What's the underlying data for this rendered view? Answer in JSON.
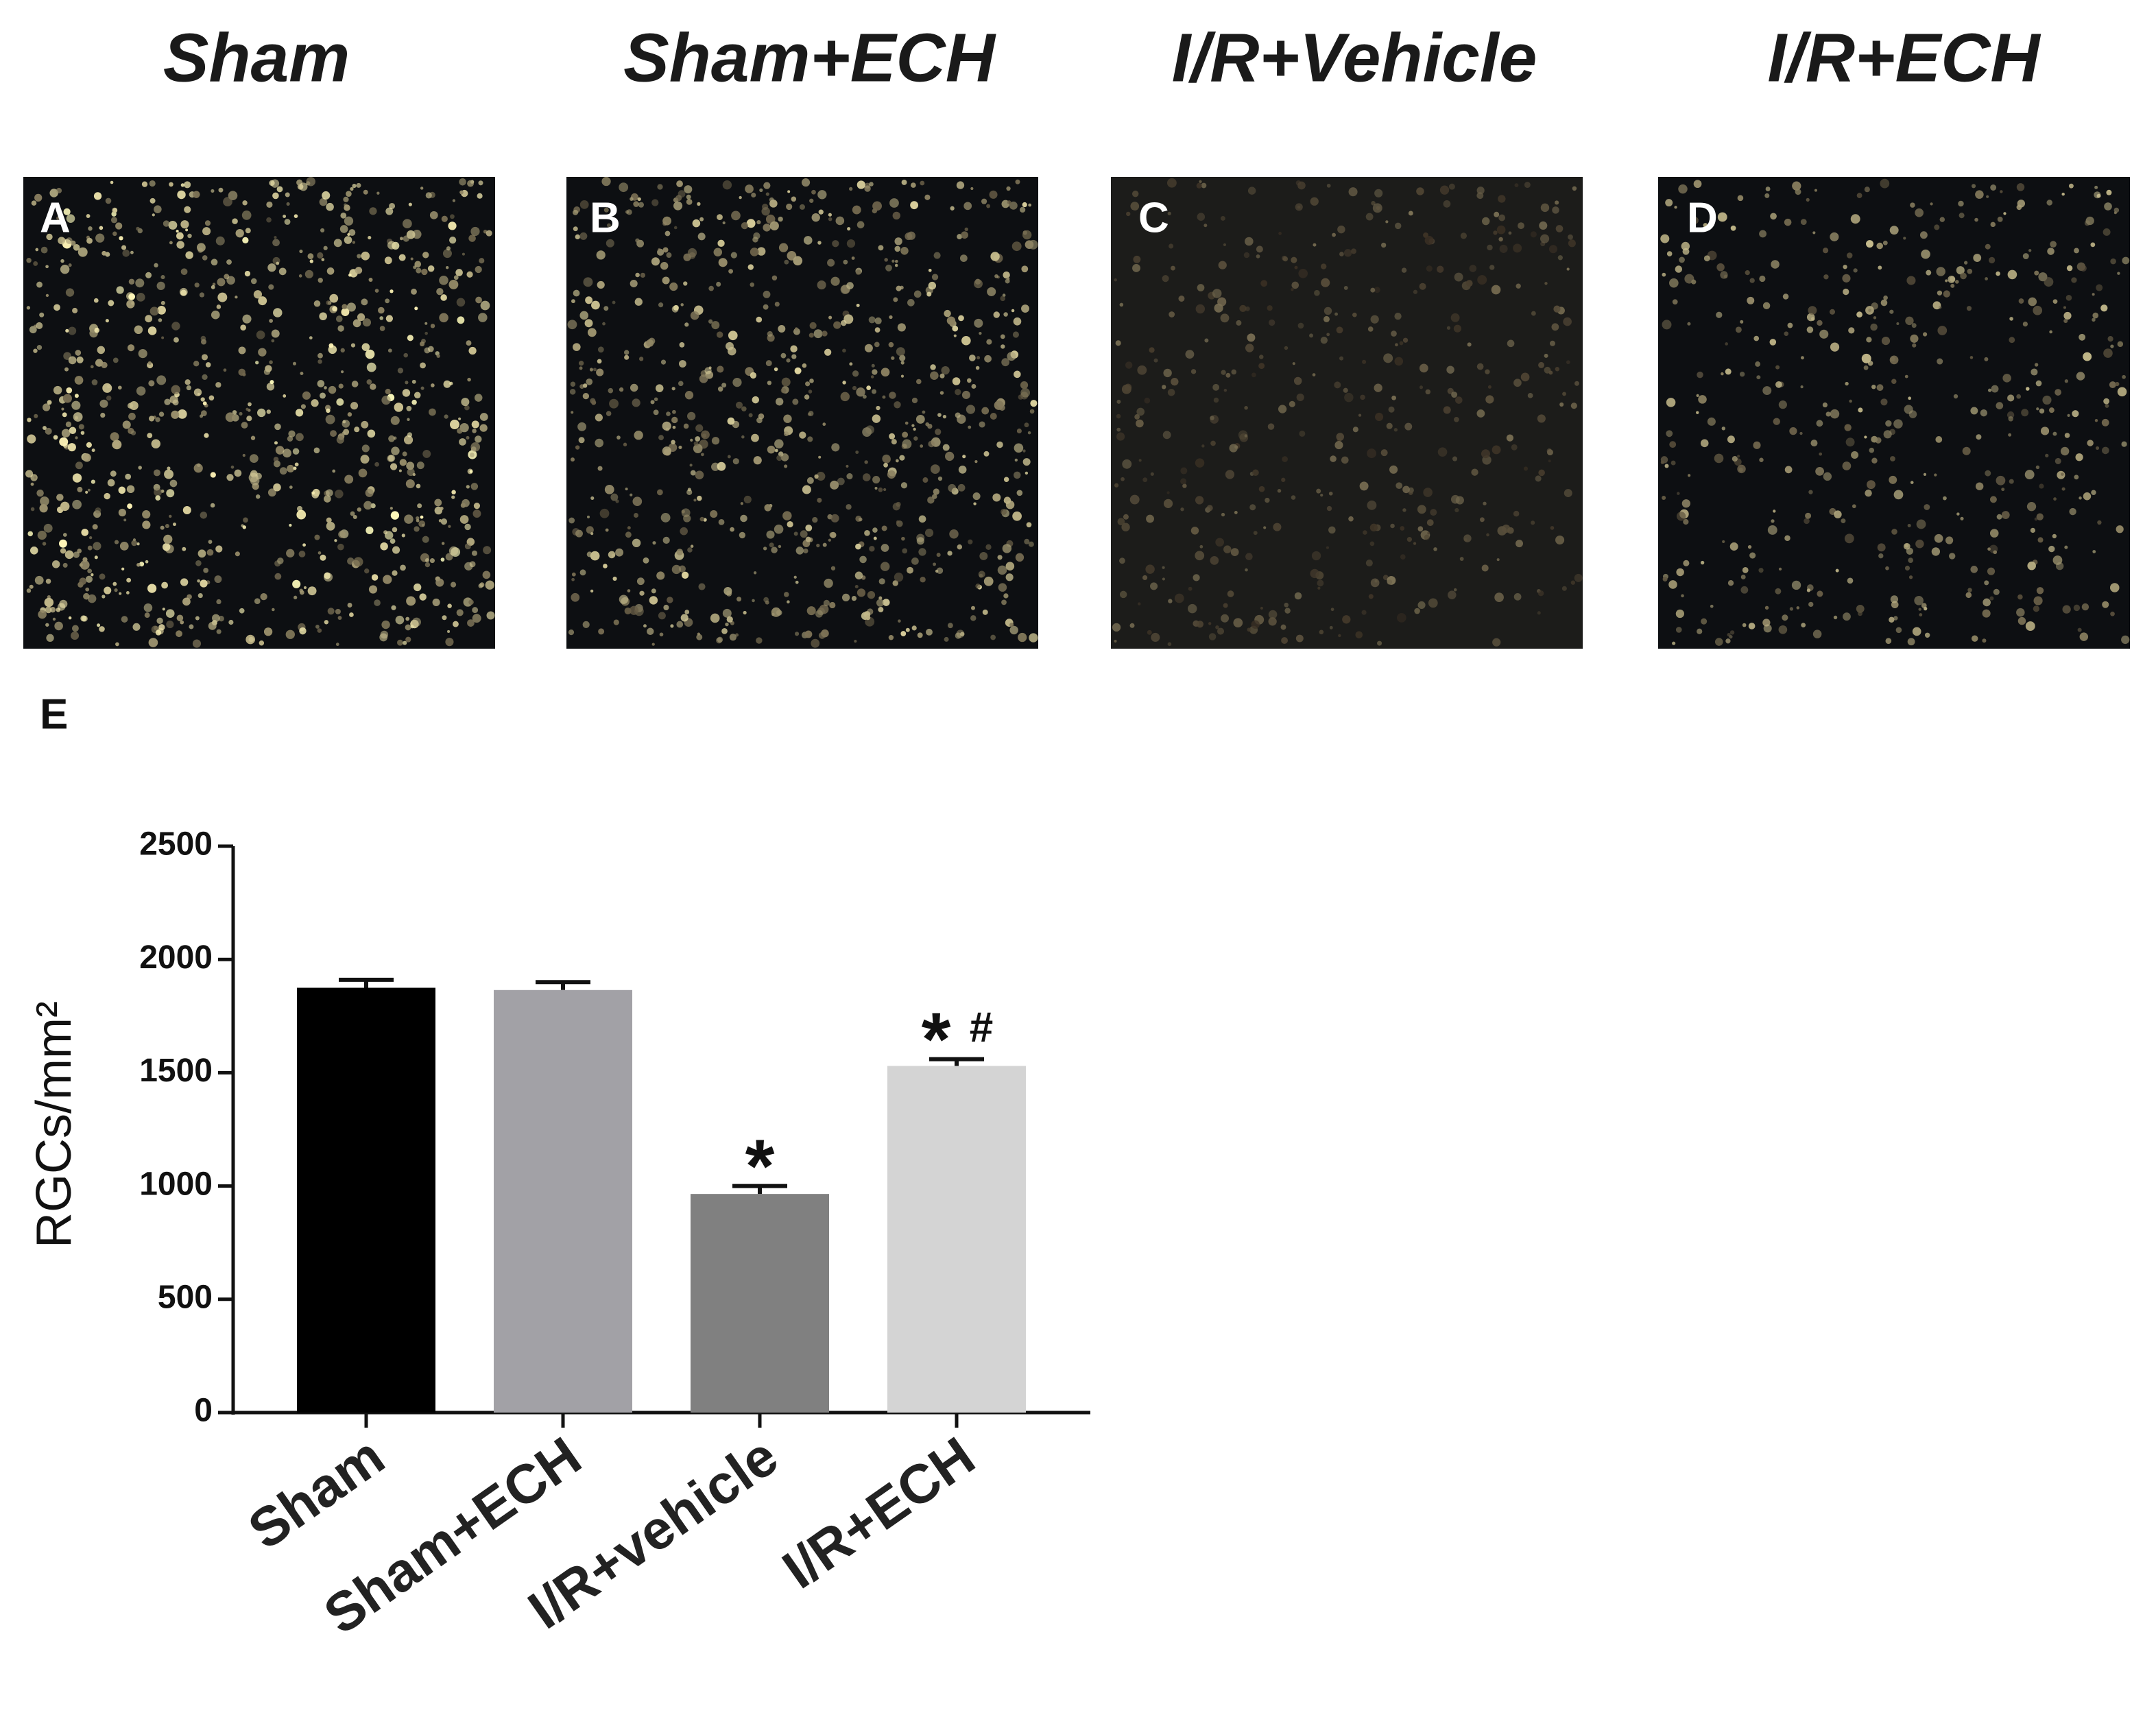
{
  "panels": [
    {
      "title": "Sham",
      "letter": "A"
    },
    {
      "title": "Sham+ECH",
      "letter": "B"
    },
    {
      "title": "I/R+Vehicle",
      "letter": "C"
    },
    {
      "title": "I/R+ECH",
      "letter": "D"
    }
  ],
  "chart_letter": "E",
  "chart_data": {
    "type": "bar",
    "y_label": "RGCs/mm²",
    "categories": [
      "Sham",
      "Sham+ECH",
      "I/R+vehicle",
      "I/R+ECH"
    ],
    "values": [
      1875,
      1865,
      965,
      1530
    ],
    "errors": [
      35,
      35,
      35,
      30
    ],
    "colors": [
      "#000000",
      "#a2a1a6",
      "#808080",
      "#d4d4d4"
    ],
    "significance": [
      null,
      null,
      [
        "*"
      ],
      [
        "*",
        "#"
      ]
    ],
    "ylim": [
      0,
      2500
    ],
    "yticks": [
      0,
      500,
      1000,
      1500,
      2000,
      2500
    ],
    "grid": false
  }
}
